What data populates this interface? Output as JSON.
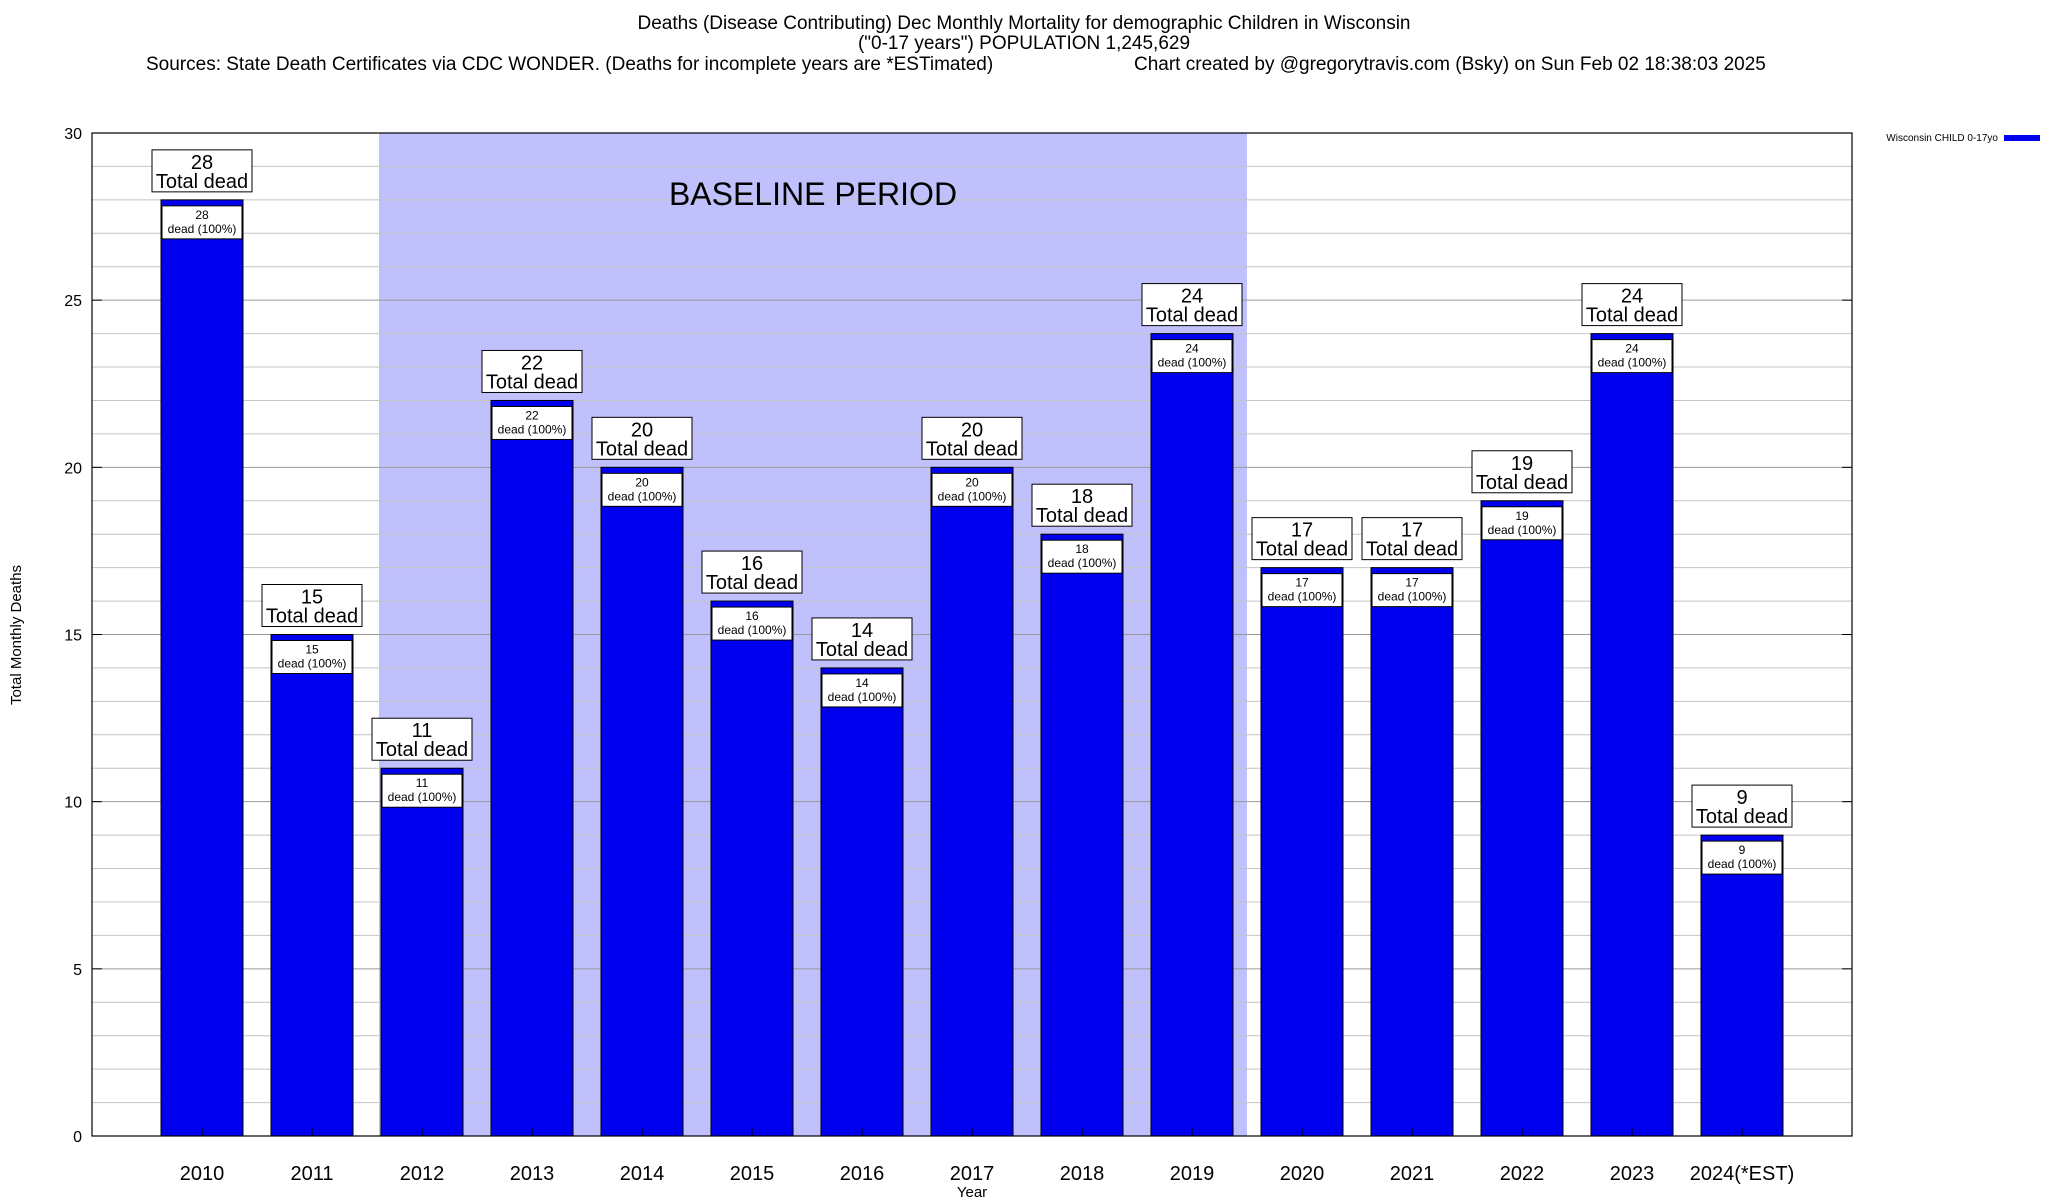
{
  "header": {
    "title_line1": "Deaths (Disease Contributing) Dec Monthly Mortality for demographic Children in Wisconsin",
    "title_line2": "(\"0-17 years\") POPULATION 1,245,629",
    "sources": "Sources: State Death Certificates via CDC WONDER. (Deaths for incomplete years are *ESTimated)",
    "credit": "Chart created by @gregorytravis.com (Bsky) on Sun Feb 02 18:38:03 2025"
  },
  "chart_data": {
    "type": "bar",
    "xlabel": "Year",
    "ylabel": "Total Monthly Deaths",
    "ylim": [
      0,
      30
    ],
    "yticks": [
      0,
      5,
      10,
      15,
      20,
      25,
      30
    ],
    "grid": true,
    "categories": [
      "2010",
      "2011",
      "2012",
      "2013",
      "2014",
      "2015",
      "2016",
      "2017",
      "2018",
      "2019",
      "2020",
      "2021",
      "2022",
      "2023",
      "2024(*EST)"
    ],
    "series": [
      {
        "name": "Wisconsin CHILD 0-17yo",
        "color": "#0000ee",
        "values": [
          28,
          15,
          11,
          22,
          20,
          16,
          14,
          20,
          18,
          24,
          17,
          17,
          19,
          24,
          9
        ]
      }
    ],
    "bar_label_top": "Total dead",
    "bar_label_inner": "dead (100%)",
    "baseline": {
      "label": "BASELINE PERIOD",
      "from": "2012",
      "to": "2019",
      "color": "#c0c0fc"
    },
    "legend": {
      "placement": "top-right",
      "label": "Wisconsin CHILD 0-17yo"
    }
  }
}
